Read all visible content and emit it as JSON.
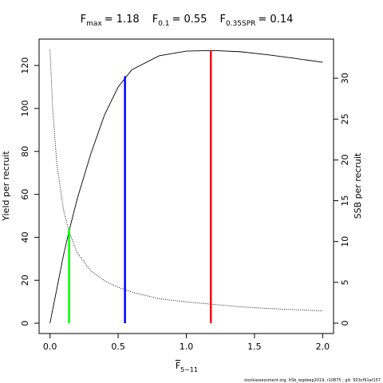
{
  "chart_data": {
    "type": "line",
    "title": [
      {
        "symbol": "F",
        "subscript": "max",
        "text": "= 1.18"
      },
      {
        "symbol": "F",
        "subscript": "0.1",
        "text": "= 0.55"
      },
      {
        "symbol": "F",
        "subscript": "0.35SPR",
        "text": "= 0.14"
      }
    ],
    "x_label": {
      "text": "F",
      "subscript": "5−11"
    },
    "y_label": "Yield per recruit",
    "y2_label": "SSB per recruit",
    "footer": "stockassessment.org, ltSb_wgdeep2019, r10875 ; git: 503cf91af157",
    "x": [
      0,
      0.02,
      0.05,
      0.1,
      0.14,
      0.2,
      0.3,
      0.4,
      0.5,
      0.6,
      0.8,
      1.0,
      1.2,
      1.4,
      1.6,
      1.8,
      2.0
    ],
    "series": [
      {
        "color": "#000000",
        "style": "solid",
        "values": [
          0,
          6.5,
          16,
          32,
          43,
          58,
          79,
          97,
          110,
          118,
          124.5,
          126.7,
          127,
          126.4,
          125,
          123.3,
          121.5
        ]
      },
      {
        "color": "#000000",
        "style": "dotted",
        "axis": "y2",
        "values": [
          33.5,
          26.2,
          19.5,
          13.8,
          11.2,
          8.6,
          6.4,
          5.2,
          4.4,
          3.8,
          3.0,
          2.6,
          2.3,
          2.0,
          1.8,
          1.65,
          1.5
        ]
      }
    ],
    "reference_lines": [
      {
        "x": 1.18,
        "y": 127,
        "color": "#ff0000"
      },
      {
        "x": 0.55,
        "y": 115,
        "color": "#0000ff"
      },
      {
        "x": 0.14,
        "y": 44,
        "color": "#00ff00"
      }
    ],
    "xlim": [
      -0.08,
      2.08
    ],
    "xticks": [
      {
        "value": 0,
        "label": "0.0"
      },
      {
        "value": 0.5,
        "label": "0.5"
      },
      {
        "value": 1,
        "label": "1.0"
      },
      {
        "value": 1.5,
        "label": "1.5"
      },
      {
        "value": 2,
        "label": "2.0"
      }
    ],
    "ylim": [
      -4.8,
      132.3
    ],
    "yticks": [
      0,
      20,
      40,
      60,
      80,
      100,
      120
    ],
    "y2lim": [
      -1.27,
      34.8
    ],
    "y2ticks": [
      0,
      5,
      10,
      15,
      20,
      25,
      30
    ]
  }
}
